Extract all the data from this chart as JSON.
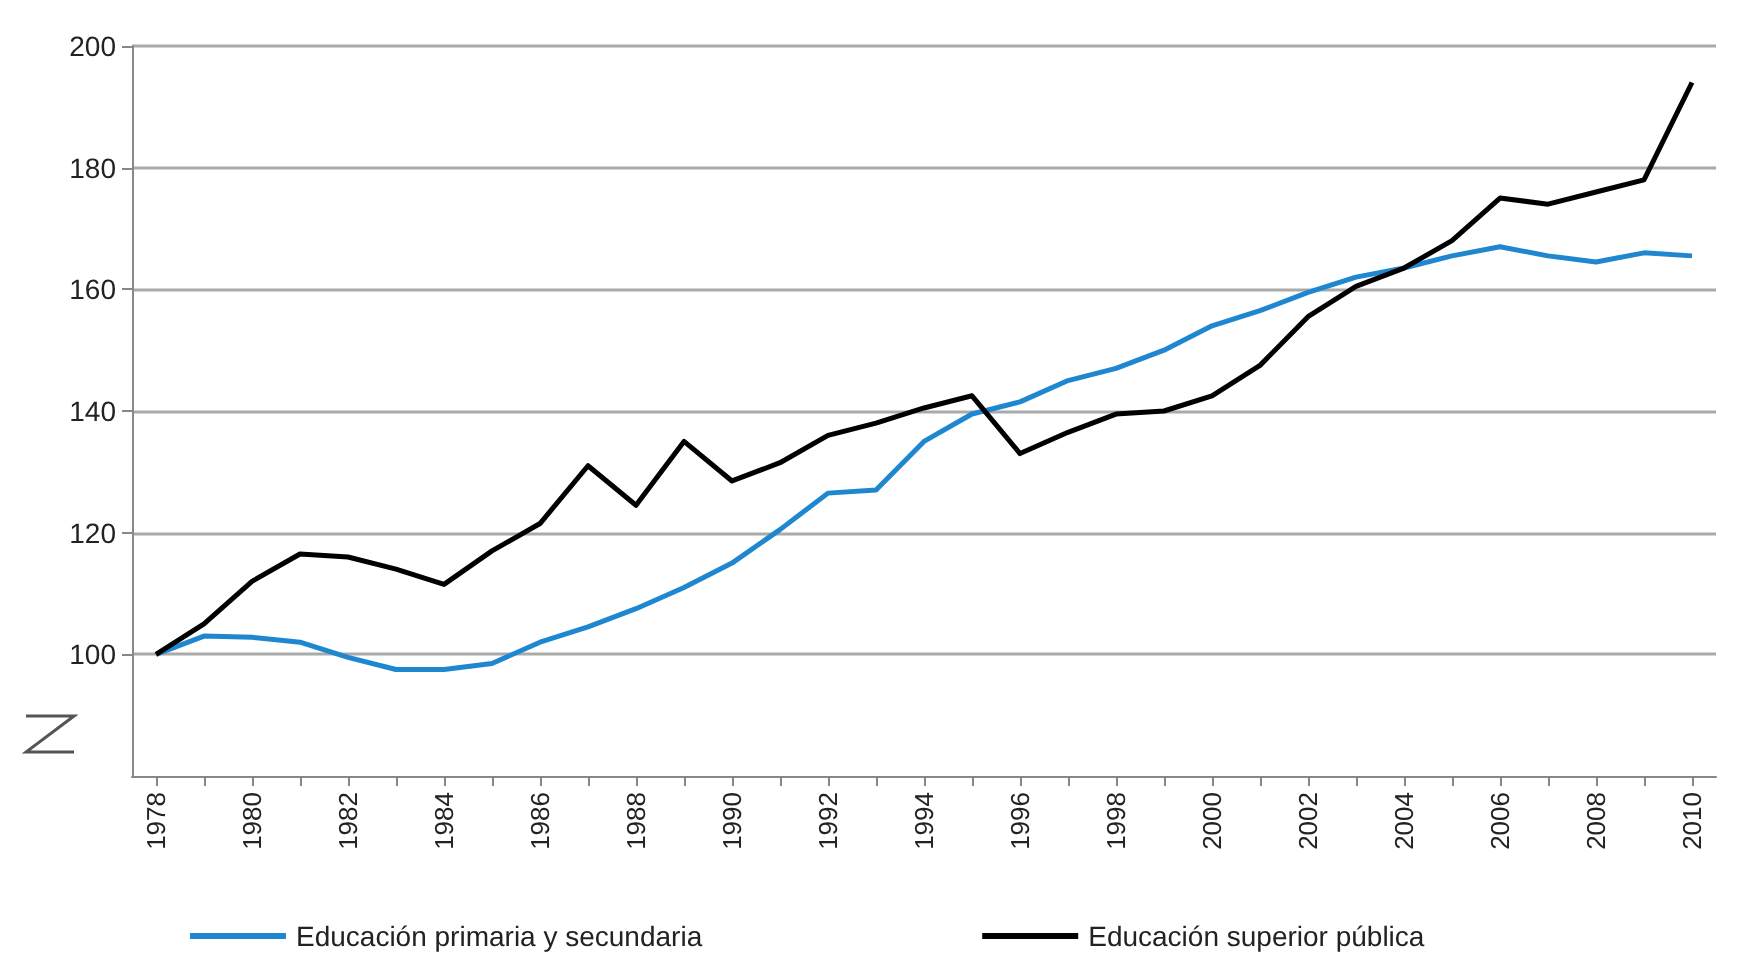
{
  "chart_data": {
    "type": "line",
    "categories": [
      "1978",
      null,
      "1980",
      null,
      "1982",
      null,
      "1984",
      null,
      "1986",
      null,
      "1988",
      null,
      "1990",
      null,
      "1992",
      null,
      "1994",
      null,
      "1996",
      null,
      "1998",
      null,
      "2000",
      null,
      "2002",
      null,
      "2004",
      null,
      "2006",
      null,
      "2008",
      null,
      "2010"
    ],
    "series": [
      {
        "name": "Educación primaria y secundaria",
        "color": "#1f87d0",
        "values": [
          100,
          103,
          102.8,
          102,
          99.5,
          97.5,
          97.5,
          98.5,
          102,
          104.5,
          107.5,
          111,
          115,
          120.5,
          126.5,
          127,
          135,
          139.5,
          141.5,
          145,
          147,
          150,
          154,
          156.5,
          159.5,
          162,
          163.5,
          165.5,
          167,
          165.5,
          164.5,
          166,
          165.5
        ]
      },
      {
        "name": "Educación superior pública",
        "color": "#000000",
        "values": [
          100,
          105,
          112,
          116.5,
          116,
          114,
          111.5,
          117,
          121.5,
          131,
          124.5,
          135,
          128.5,
          131.5,
          136,
          138,
          140.5,
          142.5,
          133,
          136.5,
          139.5,
          140,
          142.5,
          147.5,
          155.5,
          160.5,
          163.5,
          168,
          175,
          174,
          176,
          178,
          194
        ]
      }
    ],
    "ylim": [
      80,
      200
    ],
    "yticks": [
      100,
      120,
      140,
      160,
      180,
      200
    ],
    "grid": "y",
    "legend": "bottom",
    "marker": "none",
    "line_style": "solid"
  }
}
